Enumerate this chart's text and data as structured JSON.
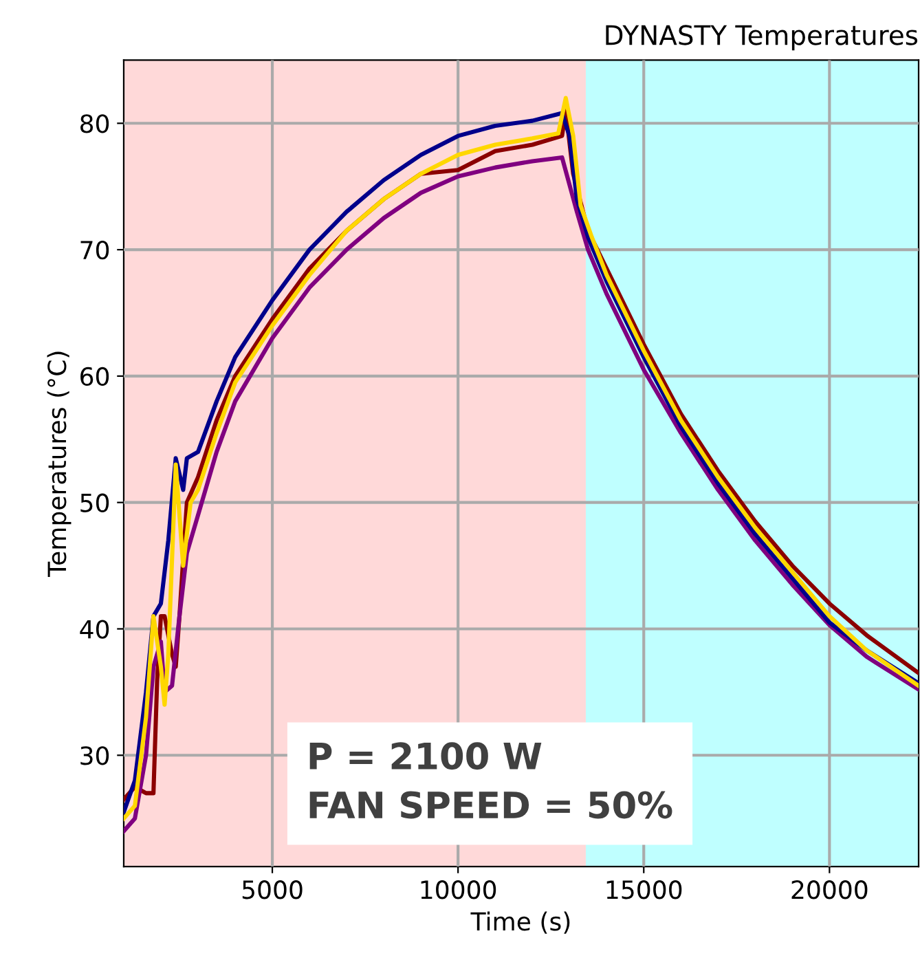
{
  "chart_data": {
    "type": "line",
    "title": "DYNASTY Temperatures",
    "xlabel": "Time (s)",
    "ylabel": "Temperatures (°C)",
    "xlim": [
      1000,
      22400
    ],
    "ylim": [
      21.2,
      85
    ],
    "xticks": [
      5000,
      10000,
      15000,
      20000
    ],
    "yticks": [
      30,
      40,
      50,
      60,
      70,
      80
    ],
    "grid": true,
    "legend": false,
    "bands": [
      {
        "axis": "x",
        "from": 1000,
        "to": 13440,
        "color": "#ffd9d9"
      },
      {
        "axis": "x",
        "from": 13440,
        "to": 22400,
        "color": "#bfffff"
      }
    ],
    "annotations": [
      "P = 2100 W\nFAN SPEED = 50%"
    ],
    "series": [
      {
        "color": "#8b0000",
        "x": [
          1000,
          1300,
          1600,
          1800,
          1900,
          2000,
          2100,
          2300,
          2400,
          2500,
          2700,
          3000,
          3500,
          4000,
          5000,
          6000,
          7000,
          8000,
          9000,
          10000,
          11000,
          12000,
          12800,
          12900,
          13100,
          13500,
          14000,
          15000,
          16000,
          17000,
          18000,
          19000,
          20000,
          21000,
          22400
        ],
        "values": [
          26.5,
          27.5,
          27,
          27,
          36,
          41,
          41,
          38,
          37,
          41,
          50,
          52,
          56.5,
          60,
          64.5,
          68.5,
          71.5,
          74,
          76,
          76.3,
          77.8,
          78.3,
          79,
          81,
          76,
          71.5,
          68.5,
          62.5,
          57,
          52.5,
          48.5,
          45,
          42,
          39.5,
          36.5
        ]
      },
      {
        "color": "#800080",
        "x": [
          1000,
          1300,
          1600,
          1800,
          2000,
          2100,
          2300,
          2500,
          2700,
          3000,
          3500,
          4000,
          5000,
          6000,
          7000,
          8000,
          9000,
          10000,
          11000,
          12000,
          12800,
          13200,
          13500,
          14000,
          15000,
          16000,
          17000,
          18000,
          19000,
          20000,
          21000,
          22400
        ],
        "values": [
          24,
          25,
          30,
          37,
          39,
          35,
          35.5,
          41,
          46,
          49,
          54,
          58,
          63,
          67,
          70,
          72.5,
          74.5,
          75.8,
          76.5,
          77,
          77.3,
          73,
          70,
          66.5,
          60.5,
          55.5,
          51,
          47,
          43.5,
          40.3,
          37.8,
          35.2
        ]
      },
      {
        "color": "#00008b",
        "x": [
          1000,
          1300,
          1600,
          1800,
          2000,
          2200,
          2400,
          2600,
          2700,
          3000,
          3500,
          4000,
          5000,
          6000,
          7000,
          8000,
          9000,
          10000,
          11000,
          12000,
          12800,
          13000,
          13200,
          13500,
          14000,
          15000,
          16000,
          17000,
          18000,
          19000,
          20000,
          21000,
          22400
        ],
        "values": [
          25.5,
          28,
          35,
          41,
          42,
          47,
          53.5,
          51,
          53.5,
          54,
          58,
          61.5,
          66,
          70,
          73,
          75.5,
          77.5,
          79,
          79.8,
          80.2,
          80.8,
          79,
          74,
          71,
          67.5,
          61.5,
          56,
          51.5,
          47.5,
          44,
          40.5,
          38.3,
          35.7
        ]
      },
      {
        "color": "#ffd700",
        "x": [
          1000,
          1300,
          1600,
          1800,
          2000,
          2100,
          2200,
          2400,
          2500,
          2600,
          2800,
          3000,
          3500,
          4000,
          5000,
          6000,
          7000,
          8000,
          9000,
          10000,
          11000,
          12000,
          12700,
          12900,
          13100,
          13300,
          13600,
          14000,
          15000,
          16000,
          17000,
          18000,
          19000,
          20000,
          21000,
          22400
        ],
        "values": [
          25,
          26,
          33,
          41,
          37,
          34,
          38,
          53,
          49,
          45,
          50,
          51,
          55.5,
          59.5,
          64,
          68,
          71.5,
          74,
          76,
          77.5,
          78.3,
          78.8,
          79.2,
          82,
          79,
          73.5,
          71,
          68,
          62,
          56.5,
          52,
          48,
          44.5,
          41,
          38.3,
          35.5
        ]
      }
    ]
  }
}
